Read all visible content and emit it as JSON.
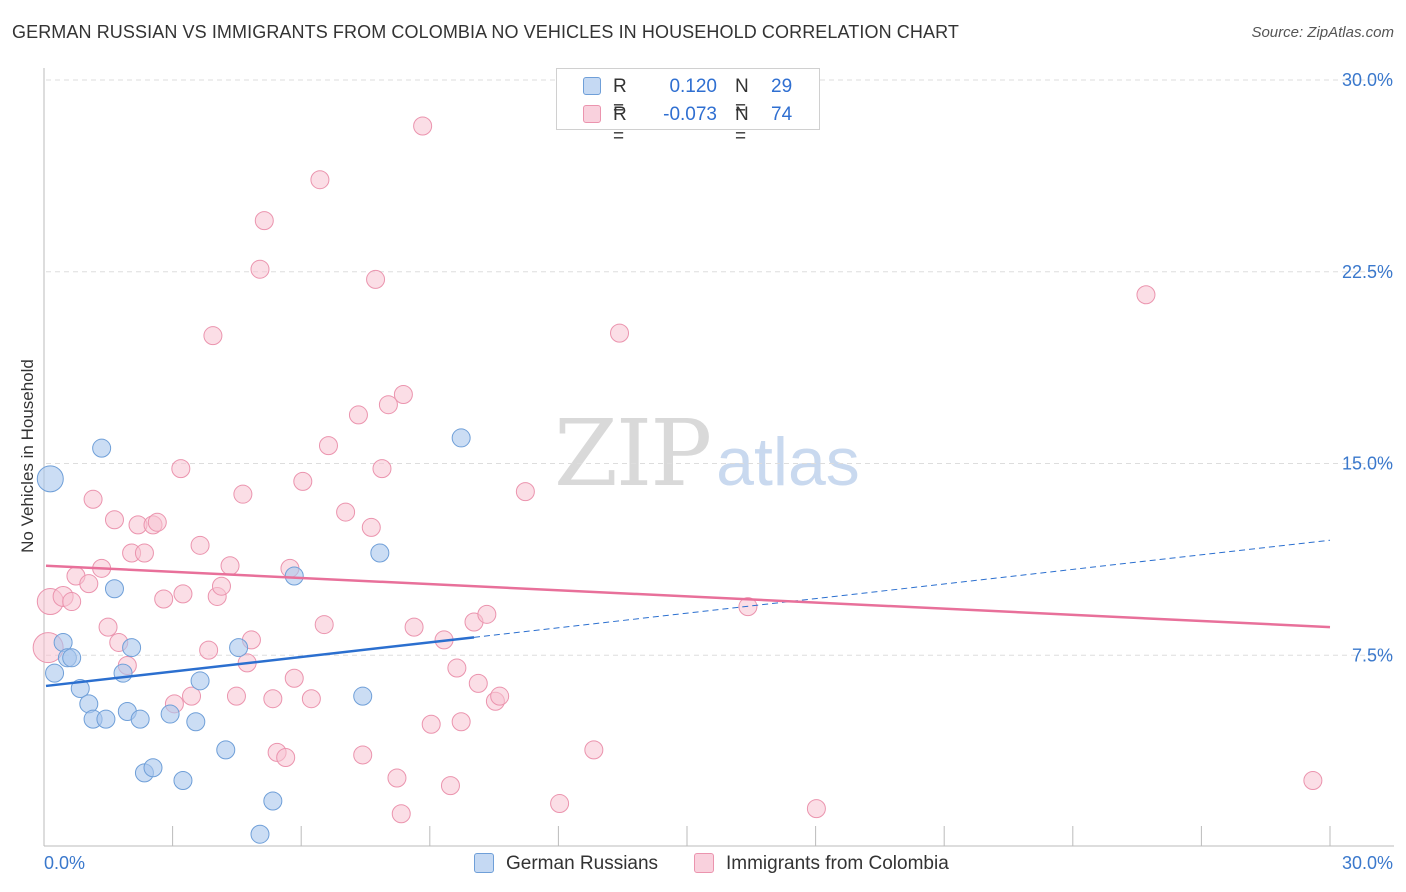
{
  "chart_data": {
    "type": "scatter",
    "title": "GERMAN RUSSIAN VS IMMIGRANTS FROM COLOMBIA NO VEHICLES IN HOUSEHOLD CORRELATION CHART",
    "source": "Source: ZipAtlas.com",
    "ylabel": "No Vehicles in Household",
    "xlabel": "",
    "xlim": [
      0,
      30
    ],
    "ylim": [
      0,
      31
    ],
    "x_tick_labels": [
      "0.0%",
      "30.0%"
    ],
    "y_ticks": [
      7.5,
      15.0,
      22.5,
      30.0
    ],
    "y_tick_labels": [
      "7.5%",
      "15.0%",
      "22.5%",
      "30.0%"
    ],
    "grid": true,
    "watermark": {
      "part1": "ZIP",
      "part2": "atlas"
    },
    "legend_stats": [
      {
        "r_label": "R =",
        "r_value": "0.120",
        "n_label": "N =",
        "n_value": "29"
      },
      {
        "r_label": "R =",
        "r_value": "-0.073",
        "n_label": "N =",
        "n_value": "74"
      }
    ],
    "series": [
      {
        "name": "German Russians",
        "color": "#a9c6ec",
        "edge_color": "#6f9fd8",
        "line_color": "#2b6fcf",
        "trend": {
          "x0": 0,
          "y0": 6.3,
          "x1": 10,
          "y1": 8.2,
          "dash_to_x": 30,
          "dash_to_y": 12.0
        },
        "points": [
          [
            0.1,
            14.4,
            12
          ],
          [
            0.2,
            6.8,
            8
          ],
          [
            0.4,
            8.0,
            8
          ],
          [
            0.5,
            7.4,
            8
          ],
          [
            0.6,
            7.4,
            8
          ],
          [
            0.8,
            6.2,
            8
          ],
          [
            1.0,
            5.6,
            8
          ],
          [
            1.1,
            5.0,
            8
          ],
          [
            1.3,
            15.6,
            8
          ],
          [
            1.4,
            5.0,
            8
          ],
          [
            1.6,
            10.1,
            8
          ],
          [
            1.8,
            6.8,
            8
          ],
          [
            1.9,
            5.3,
            8
          ],
          [
            2.0,
            7.8,
            8
          ],
          [
            2.2,
            5.0,
            8
          ],
          [
            2.3,
            2.9,
            8
          ],
          [
            2.5,
            3.1,
            8
          ],
          [
            2.9,
            5.2,
            8
          ],
          [
            3.2,
            2.6,
            8
          ],
          [
            3.5,
            4.9,
            8
          ],
          [
            3.6,
            6.5,
            8
          ],
          [
            4.2,
            3.8,
            8
          ],
          [
            4.5,
            7.8,
            8
          ],
          [
            5.0,
            0.5,
            8
          ],
          [
            5.3,
            1.8,
            8
          ],
          [
            5.8,
            10.6,
            8
          ],
          [
            7.4,
            5.9,
            8
          ],
          [
            7.8,
            11.5,
            8
          ],
          [
            9.7,
            16.0,
            8
          ]
        ]
      },
      {
        "name": "Immigrants from Colombia",
        "color": "#f7c3d2",
        "edge_color": "#eb94ae",
        "line_color": "#e8709a",
        "trend": {
          "x0": 0,
          "y0": 11.0,
          "x1": 30,
          "y1": 8.6
        },
        "points": [
          [
            0.05,
            7.8,
            14
          ],
          [
            0.1,
            9.6,
            12
          ],
          [
            0.4,
            9.8,
            9
          ],
          [
            0.6,
            9.6,
            8
          ],
          [
            0.7,
            10.6,
            8
          ],
          [
            1.0,
            10.3,
            8
          ],
          [
            1.1,
            13.6,
            8
          ],
          [
            1.3,
            10.9,
            8
          ],
          [
            1.45,
            8.6,
            8
          ],
          [
            1.6,
            12.8,
            8
          ],
          [
            1.7,
            8.0,
            8
          ],
          [
            1.9,
            7.1,
            8
          ],
          [
            2.0,
            11.5,
            8
          ],
          [
            2.15,
            12.6,
            8
          ],
          [
            2.3,
            11.5,
            8
          ],
          [
            2.5,
            12.6,
            8
          ],
          [
            2.6,
            12.7,
            8
          ],
          [
            2.75,
            9.7,
            8
          ],
          [
            3.0,
            5.6,
            8
          ],
          [
            3.15,
            14.8,
            8
          ],
          [
            3.2,
            9.9,
            8
          ],
          [
            3.4,
            5.9,
            8
          ],
          [
            3.6,
            11.8,
            8
          ],
          [
            3.8,
            7.7,
            8
          ],
          [
            3.9,
            20.0,
            8
          ],
          [
            4.0,
            9.8,
            8
          ],
          [
            4.1,
            10.2,
            8
          ],
          [
            4.3,
            11.0,
            8
          ],
          [
            4.45,
            5.9,
            8
          ],
          [
            4.6,
            13.8,
            8
          ],
          [
            4.7,
            7.2,
            8
          ],
          [
            4.8,
            8.1,
            8
          ],
          [
            5.0,
            22.6,
            8
          ],
          [
            5.1,
            24.5,
            8
          ],
          [
            5.3,
            5.8,
            8
          ],
          [
            5.4,
            3.7,
            8
          ],
          [
            5.6,
            3.5,
            8
          ],
          [
            5.7,
            10.9,
            8
          ],
          [
            5.8,
            6.6,
            8
          ],
          [
            6.0,
            14.3,
            8
          ],
          [
            6.2,
            5.8,
            8
          ],
          [
            6.4,
            26.1,
            8
          ],
          [
            6.5,
            8.7,
            8
          ],
          [
            6.6,
            15.7,
            8
          ],
          [
            7.0,
            13.1,
            8
          ],
          [
            7.3,
            16.9,
            8
          ],
          [
            7.4,
            3.6,
            8
          ],
          [
            7.6,
            12.5,
            8
          ],
          [
            7.7,
            22.2,
            8
          ],
          [
            7.85,
            14.8,
            8
          ],
          [
            8.0,
            17.3,
            8
          ],
          [
            8.2,
            2.7,
            8
          ],
          [
            8.3,
            1.3,
            8
          ],
          [
            8.35,
            17.7,
            8
          ],
          [
            8.6,
            8.6,
            8
          ],
          [
            8.8,
            28.2,
            8
          ],
          [
            9.0,
            4.8,
            8
          ],
          [
            9.3,
            8.1,
            8
          ],
          [
            9.45,
            2.4,
            8
          ],
          [
            9.6,
            7.0,
            8
          ],
          [
            9.7,
            4.9,
            8
          ],
          [
            10.0,
            8.8,
            8
          ],
          [
            10.1,
            6.4,
            8
          ],
          [
            10.3,
            9.1,
            8
          ],
          [
            10.5,
            5.7,
            8
          ],
          [
            10.6,
            5.9,
            8
          ],
          [
            11.2,
            13.9,
            8
          ],
          [
            12.0,
            1.7,
            8
          ],
          [
            12.8,
            3.8,
            8
          ],
          [
            13.4,
            20.1,
            8
          ],
          [
            16.4,
            9.4,
            8
          ],
          [
            18.0,
            1.5,
            8
          ],
          [
            25.7,
            21.6,
            8
          ],
          [
            29.6,
            2.6,
            8
          ]
        ]
      }
    ]
  }
}
